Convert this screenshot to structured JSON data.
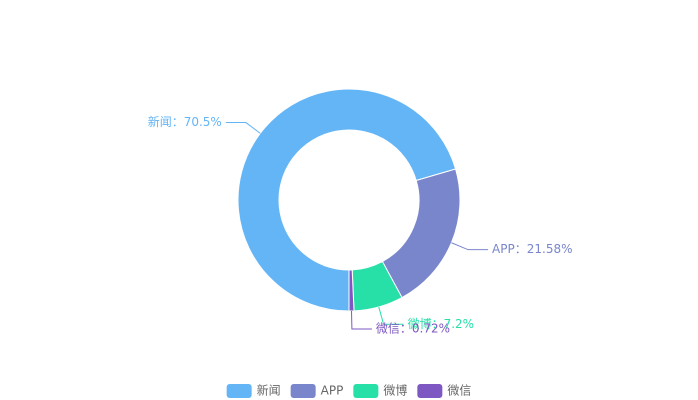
{
  "chart_data": {
    "type": "pie",
    "variant": "donut",
    "series": [
      {
        "name": "新闻",
        "value": 70.5,
        "label": "新闻：70.5%",
        "color": "#64b5f6"
      },
      {
        "name": "APP",
        "value": 21.58,
        "label": "APP：21.58%",
        "color": "#7986cb"
      },
      {
        "name": "微博",
        "value": 7.2,
        "label": "微博：7.2%",
        "color": "#26e0a8"
      },
      {
        "name": "微信",
        "value": 0.72,
        "label": "微信：0.72%",
        "color": "#7e57c2"
      }
    ],
    "legend": {
      "position": "bottom-center",
      "items": [
        "新闻",
        "APP",
        "微博",
        "微信"
      ]
    }
  }
}
